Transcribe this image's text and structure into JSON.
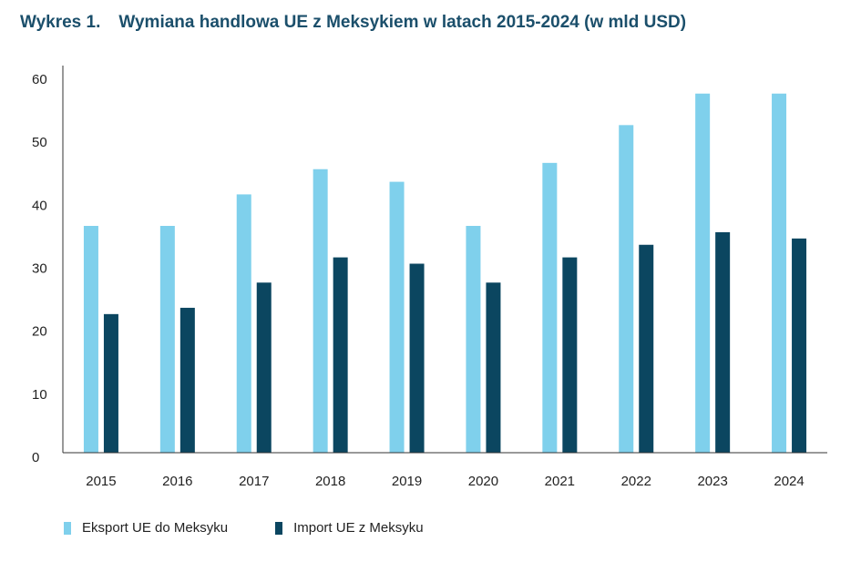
{
  "title": {
    "number": "Wykres 1.",
    "text": "Wymiana handlowa UE z Meksykiem w latach 2015-2024 (w mld USD)"
  },
  "chart_data": {
    "type": "bar",
    "categories": [
      "2015",
      "2016",
      "2017",
      "2018",
      "2019",
      "2020",
      "2021",
      "2022",
      "2023",
      "2024"
    ],
    "series": [
      {
        "name": "Eksport UE do Meksyku",
        "color": "#7fd0ec",
        "values": [
          36,
          36,
          41,
          45,
          43,
          36,
          46,
          52,
          57,
          57
        ]
      },
      {
        "name": "Import UE z Meksyku",
        "color": "#0b4660",
        "values": [
          22,
          23,
          27,
          31,
          30,
          27,
          31,
          33,
          35,
          34
        ]
      }
    ],
    "yticks": [
      "0",
      "10",
      "20",
      "30",
      "40",
      "50",
      "60"
    ],
    "ylim": [
      0,
      60
    ],
    "grid": false,
    "legend_position": "bottom-left"
  }
}
